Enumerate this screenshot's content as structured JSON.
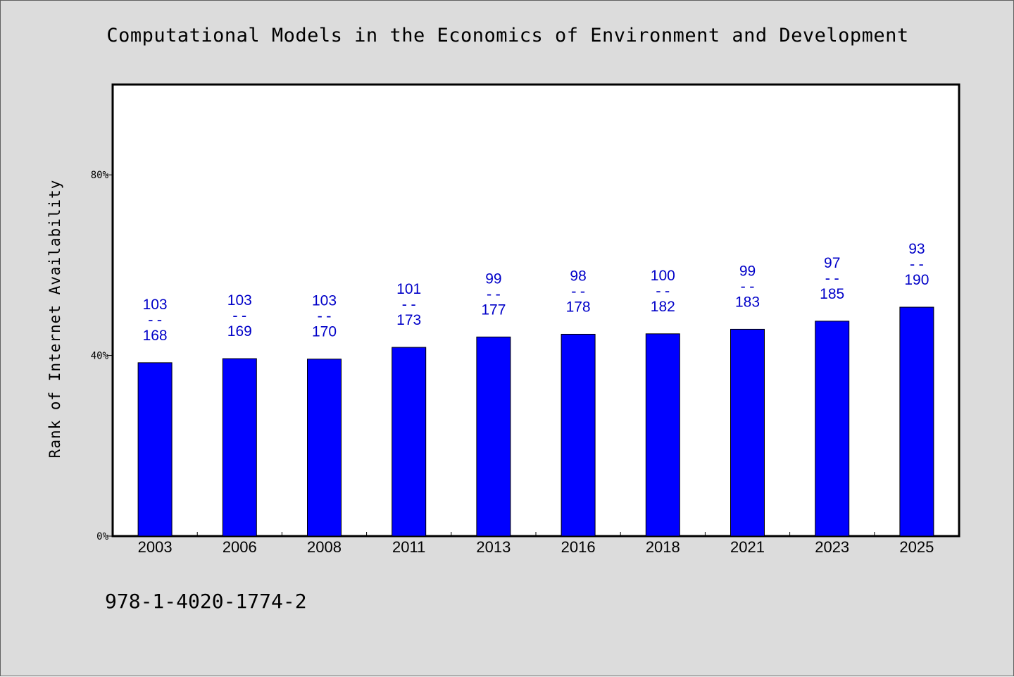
{
  "chart_data": {
    "type": "bar",
    "title": "Computational Models in the Economics of Environment and Development",
    "xlabel": "",
    "ylabel": "Rank of Internet Availability",
    "ylim": [
      0,
      100
    ],
    "yticks": [
      0,
      40,
      80
    ],
    "ytick_labels": [
      "0%",
      "40%",
      "80%"
    ],
    "categories": [
      "2003",
      "2006",
      "2008",
      "2011",
      "2013",
      "2016",
      "2018",
      "2021",
      "2023",
      "2025"
    ],
    "series": [
      {
        "values": [
          38.4,
          39.3,
          39.2,
          41.8,
          44.1,
          44.7,
          44.8,
          45.8,
          47.6,
          50.7
        ],
        "labels": [
          {
            "top": "103",
            "sep": "--",
            "bottom": "168"
          },
          {
            "top": "103",
            "sep": "--",
            "bottom": "169"
          },
          {
            "top": "103",
            "sep": "--",
            "bottom": "170"
          },
          {
            "top": "101",
            "sep": "--",
            "bottom": "173"
          },
          {
            "top": "99",
            "sep": "--",
            "bottom": "177"
          },
          {
            "top": "98",
            "sep": "--",
            "bottom": "178"
          },
          {
            "top": "100",
            "sep": "--",
            "bottom": "182"
          },
          {
            "top": "99",
            "sep": "--",
            "bottom": "183"
          },
          {
            "top": "97",
            "sep": "--",
            "bottom": "185"
          },
          {
            "top": "93",
            "sep": "--",
            "bottom": "190"
          }
        ]
      }
    ],
    "grid": false,
    "bar_color": "#0000ff",
    "label_color": "#0000c8",
    "background_color": "#dcdcdc",
    "plot_background_color": "#ffffff"
  },
  "footer": {
    "code": "978-1-4020-1774-2"
  }
}
